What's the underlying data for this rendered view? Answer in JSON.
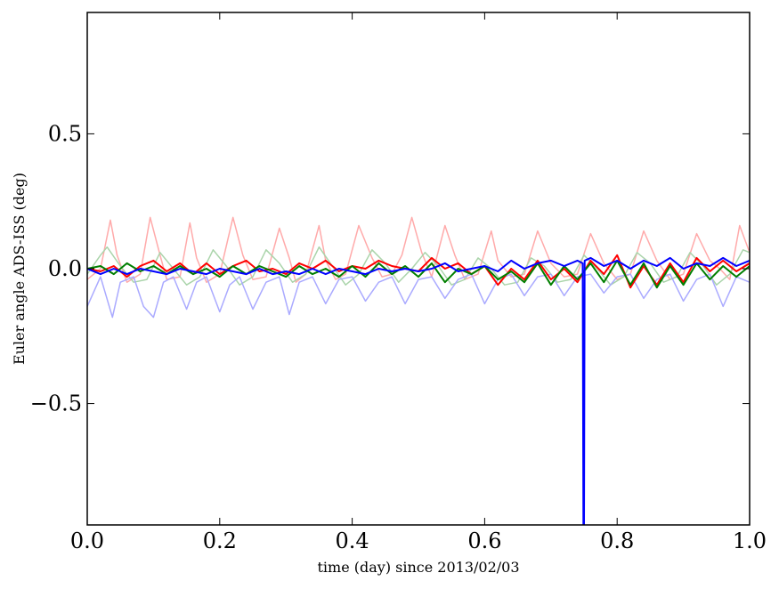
{
  "chart_data": {
    "type": "line",
    "xlabel": "time (day) since 2013/02/03",
    "ylabel": "Euler angle ADS-ISS (deg)",
    "xlim": [
      0.0,
      1.0
    ],
    "ylim": [
      -0.95,
      0.95
    ],
    "x_ticks": [
      0.0,
      0.2,
      0.4,
      0.6,
      0.8,
      1.0
    ],
    "x_tick_labels": [
      "0.0",
      "0.2",
      "0.4",
      "0.6",
      "0.8",
      "1.0"
    ],
    "y_ticks": [
      -0.5,
      0.0,
      0.5
    ],
    "y_tick_labels": [
      "−0.5",
      "0.0",
      "0.5"
    ],
    "grid": false,
    "legend": "none",
    "series": [
      {
        "color": "#ffaaaa",
        "x": [
          0.0,
          0.02,
          0.035,
          0.045,
          0.06,
          0.08,
          0.095,
          0.11,
          0.12,
          0.14,
          0.155,
          0.165,
          0.18,
          0.2,
          0.22,
          0.235,
          0.25,
          0.27,
          0.29,
          0.305,
          0.315,
          0.33,
          0.35,
          0.36,
          0.375,
          0.39,
          0.41,
          0.43,
          0.445,
          0.46,
          0.475,
          0.49,
          0.505,
          0.52,
          0.54,
          0.555,
          0.57,
          0.59,
          0.61,
          0.62,
          0.64,
          0.66,
          0.68,
          0.7,
          0.72,
          0.74,
          0.76,
          0.78,
          0.8,
          0.82,
          0.84,
          0.86,
          0.88,
          0.9,
          0.92,
          0.94,
          0.955,
          0.97,
          0.985,
          1.0
        ],
        "y": [
          -0.04,
          0.0,
          0.18,
          0.05,
          -0.05,
          -0.02,
          0.19,
          0.05,
          -0.04,
          -0.03,
          0.17,
          0.04,
          -0.05,
          -0.02,
          0.19,
          0.05,
          -0.04,
          -0.03,
          0.15,
          0.04,
          -0.05,
          -0.02,
          0.16,
          0.03,
          -0.04,
          -0.02,
          0.16,
          0.04,
          -0.03,
          -0.02,
          0.05,
          0.19,
          0.06,
          -0.03,
          0.16,
          0.05,
          -0.04,
          -0.02,
          0.14,
          0.03,
          -0.03,
          -0.02,
          0.14,
          0.02,
          -0.03,
          -0.02,
          0.13,
          0.02,
          -0.04,
          -0.02,
          0.14,
          0.03,
          -0.04,
          -0.02,
          0.13,
          0.03,
          0.0,
          -0.04,
          0.16,
          0.06
        ]
      },
      {
        "color": "#aad4aa",
        "x": [
          0.0,
          0.02,
          0.03,
          0.05,
          0.07,
          0.09,
          0.11,
          0.13,
          0.15,
          0.17,
          0.19,
          0.21,
          0.23,
          0.25,
          0.27,
          0.29,
          0.31,
          0.33,
          0.35,
          0.37,
          0.39,
          0.41,
          0.43,
          0.45,
          0.47,
          0.49,
          0.51,
          0.53,
          0.55,
          0.57,
          0.59,
          0.61,
          0.63,
          0.65,
          0.67,
          0.69,
          0.71,
          0.73,
          0.75,
          0.77,
          0.79,
          0.81,
          0.83,
          0.85,
          0.87,
          0.89,
          0.91,
          0.93,
          0.95,
          0.97,
          0.99,
          1.0
        ],
        "y": [
          -0.02,
          0.05,
          0.08,
          0.01,
          -0.05,
          -0.04,
          0.06,
          0.0,
          -0.06,
          -0.03,
          0.07,
          0.01,
          -0.06,
          -0.03,
          0.07,
          0.02,
          -0.05,
          -0.02,
          0.08,
          0.01,
          -0.06,
          -0.02,
          0.07,
          0.02,
          -0.05,
          0.0,
          0.06,
          0.01,
          -0.06,
          -0.04,
          0.04,
          0.0,
          -0.06,
          -0.05,
          0.04,
          0.01,
          -0.05,
          -0.04,
          0.05,
          0.0,
          -0.06,
          -0.03,
          0.06,
          0.02,
          -0.05,
          -0.03,
          0.06,
          0.01,
          -0.06,
          -0.02,
          0.07,
          0.06
        ]
      },
      {
        "color": "#aaaaff",
        "x": [
          0.0,
          0.02,
          0.038,
          0.05,
          0.07,
          0.085,
          0.1,
          0.115,
          0.13,
          0.15,
          0.165,
          0.18,
          0.2,
          0.215,
          0.23,
          0.25,
          0.27,
          0.29,
          0.305,
          0.32,
          0.34,
          0.36,
          0.38,
          0.4,
          0.42,
          0.44,
          0.46,
          0.48,
          0.5,
          0.52,
          0.54,
          0.56,
          0.58,
          0.6,
          0.62,
          0.64,
          0.66,
          0.68,
          0.7,
          0.72,
          0.74,
          0.76,
          0.78,
          0.8,
          0.82,
          0.84,
          0.86,
          0.88,
          0.9,
          0.92,
          0.94,
          0.96,
          0.98,
          1.0
        ],
        "y": [
          -0.14,
          -0.03,
          -0.18,
          -0.05,
          -0.03,
          -0.14,
          -0.18,
          -0.05,
          -0.03,
          -0.15,
          -0.05,
          -0.03,
          -0.16,
          -0.06,
          -0.03,
          -0.15,
          -0.05,
          -0.03,
          -0.17,
          -0.05,
          -0.03,
          -0.13,
          -0.04,
          -0.03,
          -0.12,
          -0.05,
          -0.03,
          -0.13,
          -0.04,
          -0.03,
          -0.11,
          -0.04,
          -0.02,
          -0.13,
          -0.04,
          -0.02,
          -0.1,
          -0.03,
          -0.02,
          -0.1,
          -0.03,
          -0.02,
          -0.09,
          -0.03,
          -0.02,
          -0.11,
          -0.04,
          -0.02,
          -0.12,
          -0.04,
          -0.02,
          -0.14,
          -0.03,
          -0.05
        ]
      },
      {
        "color": "#ff0000",
        "x": [
          0.0,
          0.02,
          0.04,
          0.06,
          0.08,
          0.1,
          0.12,
          0.14,
          0.16,
          0.18,
          0.2,
          0.22,
          0.24,
          0.26,
          0.28,
          0.3,
          0.32,
          0.34,
          0.36,
          0.38,
          0.4,
          0.42,
          0.44,
          0.46,
          0.48,
          0.5,
          0.52,
          0.54,
          0.56,
          0.58,
          0.6,
          0.62,
          0.64,
          0.66,
          0.68,
          0.7,
          0.72,
          0.74,
          0.76,
          0.78,
          0.8,
          0.82,
          0.84,
          0.86,
          0.88,
          0.9,
          0.92,
          0.94,
          0.96,
          0.98,
          1.0
        ],
        "y": [
          0.0,
          -0.01,
          0.01,
          -0.03,
          0.01,
          0.03,
          -0.01,
          0.02,
          -0.02,
          0.02,
          -0.02,
          0.01,
          0.03,
          -0.01,
          0.0,
          -0.02,
          0.02,
          0.0,
          0.03,
          -0.01,
          0.01,
          0.0,
          0.03,
          0.01,
          0.0,
          -0.01,
          0.04,
          0.0,
          0.02,
          -0.02,
          0.01,
          -0.06,
          0.0,
          -0.04,
          0.03,
          -0.04,
          0.0,
          -0.05,
          0.03,
          -0.02,
          0.05,
          -0.07,
          0.01,
          -0.06,
          0.02,
          -0.05,
          0.04,
          -0.01,
          0.03,
          -0.01,
          0.02
        ]
      },
      {
        "color": "#007f00",
        "x": [
          0.0,
          0.02,
          0.04,
          0.06,
          0.08,
          0.1,
          0.12,
          0.14,
          0.16,
          0.18,
          0.2,
          0.22,
          0.24,
          0.26,
          0.28,
          0.3,
          0.32,
          0.34,
          0.36,
          0.38,
          0.4,
          0.42,
          0.44,
          0.46,
          0.48,
          0.5,
          0.52,
          0.54,
          0.56,
          0.58,
          0.6,
          0.62,
          0.64,
          0.66,
          0.68,
          0.7,
          0.72,
          0.74,
          0.76,
          0.78,
          0.8,
          0.82,
          0.84,
          0.86,
          0.88,
          0.9,
          0.92,
          0.94,
          0.96,
          0.98,
          1.0
        ],
        "y": [
          0.0,
          0.01,
          -0.02,
          0.02,
          -0.01,
          0.01,
          -0.02,
          0.01,
          -0.02,
          0.0,
          -0.03,
          0.01,
          -0.02,
          0.01,
          -0.01,
          -0.03,
          0.01,
          -0.02,
          0.0,
          -0.03,
          0.01,
          -0.03,
          0.02,
          -0.02,
          0.01,
          -0.03,
          0.02,
          -0.05,
          0.0,
          -0.02,
          0.01,
          -0.04,
          -0.01,
          -0.05,
          0.02,
          -0.06,
          0.01,
          -0.04,
          0.02,
          -0.05,
          0.03,
          -0.06,
          0.02,
          -0.07,
          0.01,
          -0.06,
          0.02,
          -0.04,
          0.01,
          -0.03,
          0.01
        ]
      },
      {
        "color": "#0000ff",
        "x": [
          0.0,
          0.02,
          0.04,
          0.06,
          0.08,
          0.1,
          0.12,
          0.14,
          0.16,
          0.18,
          0.2,
          0.22,
          0.24,
          0.26,
          0.28,
          0.3,
          0.32,
          0.34,
          0.36,
          0.38,
          0.4,
          0.42,
          0.44,
          0.46,
          0.48,
          0.5,
          0.52,
          0.54,
          0.56,
          0.58,
          0.6,
          0.62,
          0.64,
          0.66,
          0.68,
          0.7,
          0.72,
          0.74,
          0.748,
          0.749,
          0.75,
          0.751,
          0.76,
          0.78,
          0.8,
          0.82,
          0.84,
          0.86,
          0.88,
          0.9,
          0.92,
          0.94,
          0.96,
          0.98,
          1.0
        ],
        "y": [
          0.0,
          -0.02,
          0.0,
          -0.02,
          0.0,
          -0.01,
          -0.02,
          0.0,
          -0.01,
          -0.02,
          0.0,
          -0.01,
          -0.02,
          0.0,
          -0.02,
          -0.01,
          -0.02,
          0.0,
          -0.02,
          0.0,
          -0.01,
          -0.02,
          0.0,
          -0.01,
          0.0,
          -0.01,
          0.0,
          0.02,
          -0.01,
          0.0,
          0.01,
          -0.01,
          0.03,
          0.0,
          0.02,
          0.03,
          0.01,
          0.03,
          0.02,
          -0.95,
          -0.95,
          0.03,
          0.04,
          0.01,
          0.03,
          0.0,
          0.03,
          0.01,
          0.04,
          0.0,
          0.02,
          0.01,
          0.04,
          0.01,
          0.03
        ]
      }
    ]
  }
}
